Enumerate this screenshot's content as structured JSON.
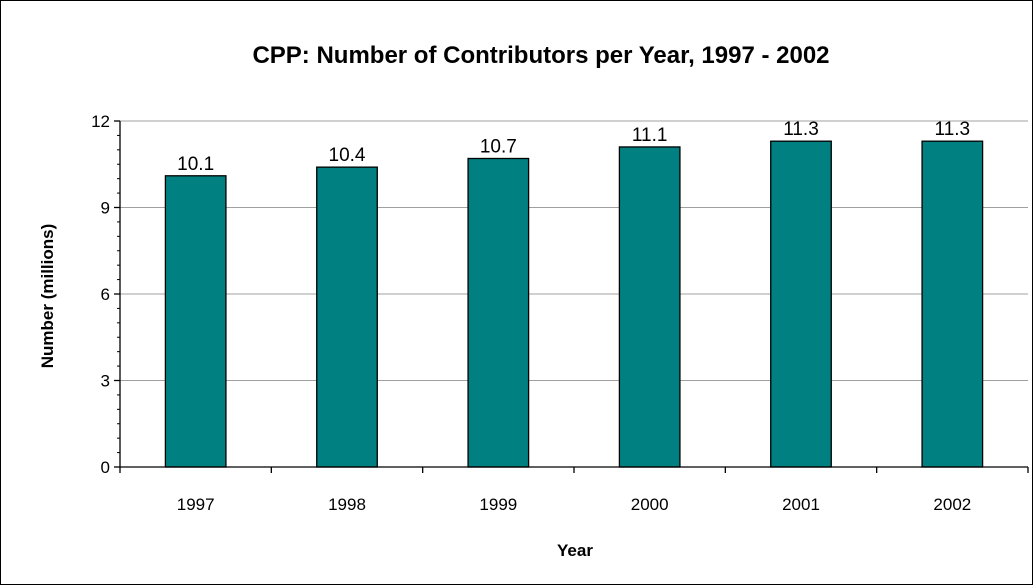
{
  "chart_data": {
    "type": "bar",
    "title": "CPP: Number of Contributors per Year, 1997 - 2002",
    "xlabel": "Year",
    "ylabel": "Number (millions)",
    "categories": [
      "1997",
      "1998",
      "1999",
      "2000",
      "2001",
      "2002"
    ],
    "values": [
      10.1,
      10.4,
      10.7,
      11.1,
      11.3,
      11.3
    ],
    "data_labels": [
      "10.1",
      "10.4",
      "10.7",
      "11.1",
      "11.3",
      "11.3"
    ],
    "ylim": [
      0,
      12
    ],
    "yticks": [
      0,
      3,
      6,
      9,
      12
    ],
    "grid": true,
    "legend": "none",
    "bar_color": "#008080"
  }
}
